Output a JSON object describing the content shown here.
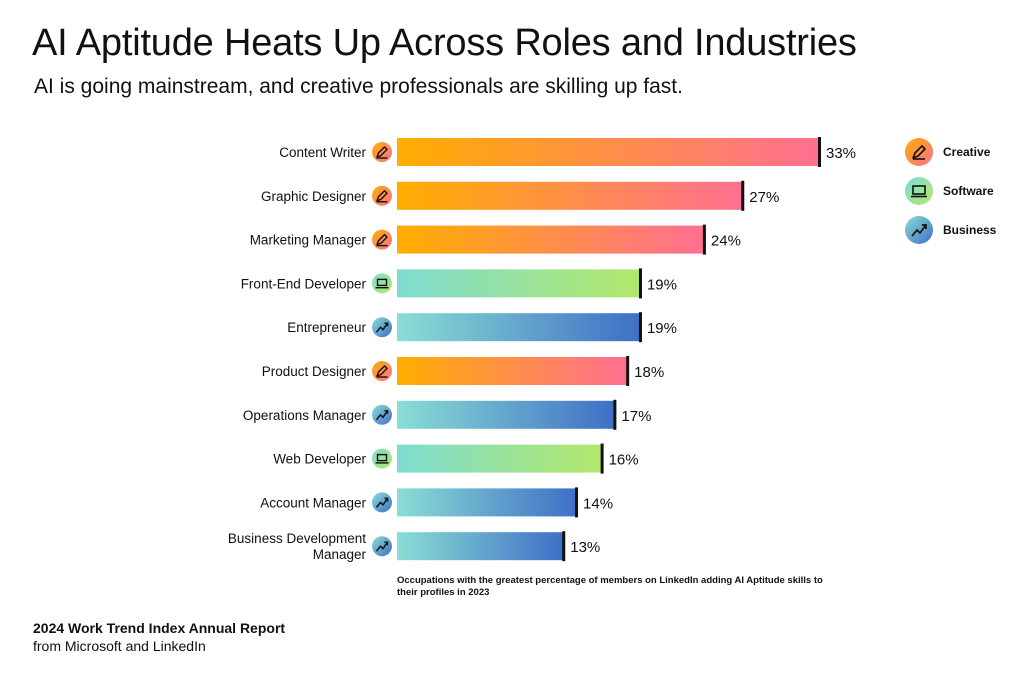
{
  "header": {
    "title": "AI Aptitude Heats Up Across Roles and Industries",
    "subtitle": "AI is going mainstream, and creative professionals are skilling up fast."
  },
  "chart_data": {
    "type": "bar",
    "orientation": "horizontal",
    "categories": [
      "Content Writer",
      "Graphic Designer",
      "Marketing Manager",
      "Front-End Developer",
      "Entrepreneur",
      "Product Designer",
      "Operations Manager",
      "Web Developer",
      "Account Manager",
      "Business Development Manager"
    ],
    "values": [
      33,
      27,
      24,
      19,
      19,
      18,
      17,
      16,
      14,
      13
    ],
    "value_labels": [
      "33%",
      "27%",
      "24%",
      "19%",
      "19%",
      "18%",
      "17%",
      "16%",
      "14%",
      "13%"
    ],
    "groups": [
      "Creative",
      "Creative",
      "Creative",
      "Software",
      "Business",
      "Creative",
      "Business",
      "Software",
      "Business",
      "Business"
    ],
    "legend": [
      "Creative",
      "Software",
      "Business"
    ],
    "legend_placement": "top-right",
    "grid": false,
    "xlim": [
      0,
      33
    ],
    "colors": {
      "Creative": [
        "#FFAE00",
        "#FF6F91"
      ],
      "Software": [
        "#7EDCD2",
        "#B2E86A"
      ],
      "Business": [
        "#8ADED5",
        "#3F6FC6"
      ]
    },
    "footnote": "Occupations with the greatest percentage of members on LinkedIn adding AI Aptitude skills to their profiles in 2023"
  },
  "icons": {
    "Creative": "pencil-icon",
    "Software": "laptop-icon",
    "Business": "trend-up-icon"
  },
  "footer": {
    "title": "2024 Work Trend Index Annual Report",
    "subtitle": "from Microsoft and LinkedIn"
  }
}
